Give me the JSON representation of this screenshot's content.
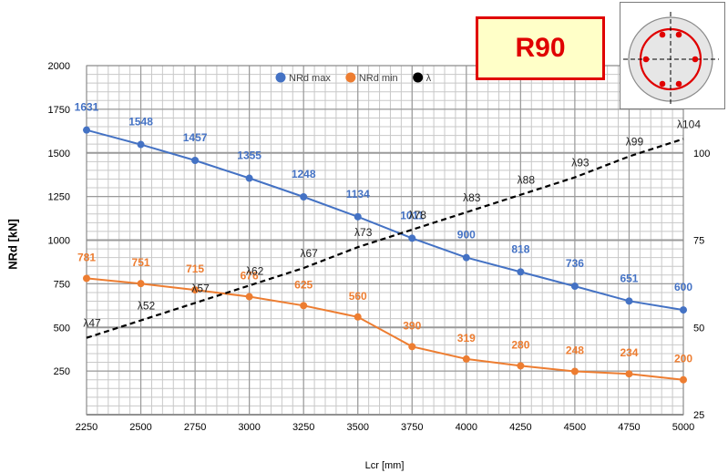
{
  "badge": {
    "text": "R90"
  },
  "chart_data": {
    "type": "line",
    "xlabel": "Lcr [mm]",
    "ylabel": "NRd [kN]",
    "x": [
      2250,
      2500,
      2750,
      3000,
      3250,
      3500,
      3750,
      4000,
      4250,
      4500,
      4750,
      5000
    ],
    "xlim": [
      2250,
      5000
    ],
    "x_ticks": [
      "2250",
      "2500",
      "2750",
      "3000",
      "3250",
      "3500",
      "3750",
      "4000",
      "4250",
      "4500",
      "4750",
      "5000"
    ],
    "ylim": [
      0,
      2000
    ],
    "y_ticks": [
      "250",
      "500",
      "750",
      "1000",
      "1250",
      "1500",
      "1750",
      "2000"
    ],
    "y2lim": [
      25,
      125
    ],
    "y2_ticks": [
      "25",
      "50",
      "75",
      "100"
    ],
    "grid": true,
    "legend_position": "top",
    "series": [
      {
        "name": "NRd max",
        "color": "#4472c4",
        "axis": "left",
        "style": "solid",
        "values": [
          1631,
          1548,
          1457,
          1355,
          1248,
          1134,
          1011,
          900,
          818,
          736,
          651,
          600
        ],
        "labels": [
          "1631",
          "1548",
          "1457",
          "1355",
          "1248",
          "1134",
          "1011",
          "900",
          "818",
          "736",
          "651",
          "600"
        ]
      },
      {
        "name": "NRd min",
        "color": "#ed7d31",
        "axis": "left",
        "style": "solid",
        "values": [
          781,
          751,
          715,
          676,
          625,
          560,
          390,
          319,
          280,
          248,
          234,
          200
        ],
        "labels": [
          "781",
          "751",
          "715",
          "676",
          "625",
          "560",
          "390",
          "319",
          "280",
          "248",
          "234",
          "200"
        ]
      },
      {
        "name": "λ",
        "color": "#000000",
        "axis": "right",
        "style": "dashed",
        "values": [
          47,
          52,
          57,
          62,
          67,
          73,
          78,
          83,
          88,
          93,
          99,
          104
        ],
        "labels": [
          "λ47",
          "λ52",
          "λ57",
          "λ62",
          "λ67",
          "λ73",
          "λ78",
          "λ83",
          "λ88",
          "λ93",
          "λ99",
          "λ104"
        ]
      }
    ]
  },
  "section": {
    "accent": "#e00000"
  }
}
